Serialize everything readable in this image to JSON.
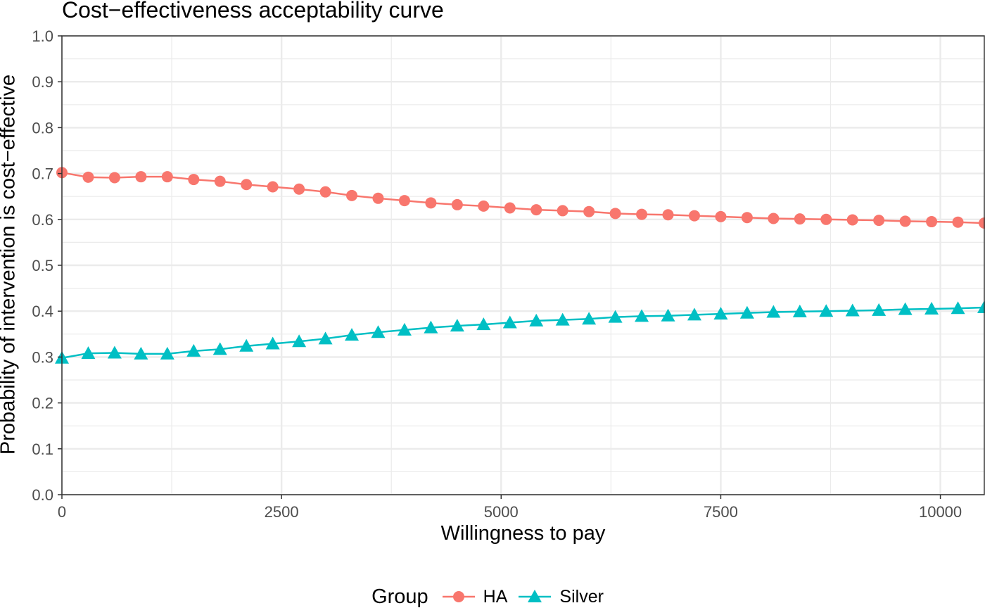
{
  "chart_data": {
    "type": "line",
    "title": "Cost−effectiveness acceptability curve",
    "xlabel": "Willingness to pay",
    "ylabel": "Probability of intervention is cost−effective",
    "xlim": [
      0,
      10500
    ],
    "ylim": [
      0,
      1
    ],
    "x_ticks": [
      0,
      2500,
      5000,
      7500,
      10000
    ],
    "x_tick_labels": [
      "0",
      "2500",
      "5000",
      "7500",
      "10000"
    ],
    "y_ticks": [
      0,
      0.1,
      0.2,
      0.3,
      0.4,
      0.5,
      0.6,
      0.7,
      0.8,
      0.9,
      1.0
    ],
    "y_tick_labels": [
      "0.0",
      "0.1",
      "0.2",
      "0.3",
      "0.4",
      "0.5",
      "0.6",
      "0.7",
      "0.8",
      "0.9",
      "1.0"
    ],
    "grid": true,
    "legend_position": "bottom",
    "legend_title": "Group",
    "x": [
      0,
      300,
      600,
      900,
      1200,
      1500,
      1800,
      2100,
      2400,
      2700,
      3000,
      3300,
      3600,
      3900,
      4200,
      4500,
      4800,
      5100,
      5400,
      5700,
      6000,
      6300,
      6600,
      6900,
      7200,
      7500,
      7800,
      8100,
      8400,
      8700,
      9000,
      9300,
      9600,
      9900,
      10200,
      10500
    ],
    "series": [
      {
        "name": "HA",
        "color": "#F8766D",
        "marker": "circle",
        "values": [
          0.702,
          0.692,
          0.691,
          0.693,
          0.693,
          0.687,
          0.683,
          0.676,
          0.671,
          0.666,
          0.66,
          0.652,
          0.646,
          0.641,
          0.636,
          0.632,
          0.629,
          0.625,
          0.621,
          0.619,
          0.617,
          0.613,
          0.611,
          0.61,
          0.608,
          0.606,
          0.604,
          0.602,
          0.601,
          0.6,
          0.599,
          0.598,
          0.596,
          0.595,
          0.594,
          0.592
        ]
      },
      {
        "name": "Silver",
        "color": "#00BFC4",
        "marker": "triangle",
        "values": [
          0.298,
          0.308,
          0.309,
          0.307,
          0.307,
          0.313,
          0.317,
          0.324,
          0.329,
          0.334,
          0.34,
          0.348,
          0.354,
          0.359,
          0.364,
          0.368,
          0.371,
          0.375,
          0.379,
          0.381,
          0.383,
          0.387,
          0.389,
          0.39,
          0.392,
          0.394,
          0.396,
          0.398,
          0.399,
          0.4,
          0.401,
          0.402,
          0.404,
          0.405,
          0.406,
          0.408
        ]
      }
    ]
  }
}
